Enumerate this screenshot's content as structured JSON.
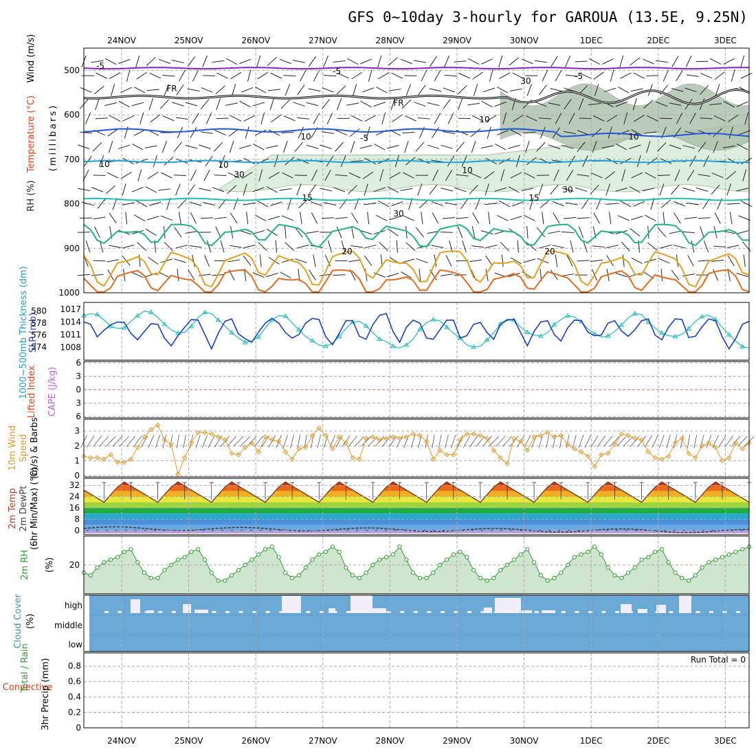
{
  "title": "GFS 0~10day 3-hourly for GAROUA (13.5E, 9.25N)",
  "run_total_label": "Run Total = 0",
  "colors": {
    "cyan_slp": "#22bbbb",
    "thickness": "#1a3fbf",
    "wind_orange": "#e69a2e",
    "rh_green": "#2e9e2e",
    "cloud_blue": "#6aa9d6",
    "purple": "#8a1fbf",
    "rh_fill": "#cfe5cf"
  },
  "chart_data": {
    "type": "meteogram",
    "date_labels": [
      "24NOV",
      "25NOV",
      "26NOV",
      "27NOV",
      "28NOV",
      "29NOV",
      "30NOV",
      "1DEC",
      "2DEC",
      "3DEC"
    ],
    "upper_air": {
      "y_label_parts": [
        "RH (%)",
        "Temperature (°C)",
        "Wind (m/s)"
      ],
      "y_label_sub": "(millibars)",
      "pressure_ticks": [
        500,
        600,
        700,
        800,
        900,
        1000
      ],
      "isotherm_labels": [
        {
          "label": "-5",
          "level": 490
        },
        {
          "label": "-5",
          "level": 502
        },
        {
          "label": "-5",
          "level": 512
        },
        {
          "label": "FR",
          "level": 545
        },
        {
          "label": "FR",
          "level": 582
        },
        {
          "label": "-5",
          "level": 650
        },
        {
          "label": "10",
          "level": 713
        },
        {
          "label": "10",
          "level": 727
        },
        {
          "label": "15",
          "level": 790
        },
        {
          "label": "15",
          "level": 792
        },
        {
          "label": "20",
          "level": 910
        },
        {
          "label": "20",
          "level": 910
        }
      ],
      "rh_labels": [
        "30",
        "10",
        "10",
        "10",
        "30",
        "10",
        "30",
        "30"
      ],
      "isotherms": [
        {
          "name": "-5",
          "color": "#8a1fbf",
          "base": 495,
          "amp": 6
        },
        {
          "name": "FR",
          "color": "#000000",
          "base": 560,
          "amp": 12
        },
        {
          "name": "-5b",
          "color": "#2255dd",
          "base": 635,
          "amp": 14
        },
        {
          "name": "10",
          "color": "#1fa0e0",
          "base": 705,
          "amp": 8
        },
        {
          "name": "15",
          "color": "#1fbfb0",
          "base": 790,
          "amp": 9
        },
        {
          "name": "20",
          "color": "#22b088",
          "base": 855,
          "amp": 35
        },
        {
          "name": "25",
          "color": "#e0a020",
          "base": 920,
          "amp": 55
        },
        {
          "name": "30",
          "color": "#e06a20",
          "base": 960,
          "amp": 45
        }
      ]
    },
    "slp_thickness": {
      "left_label": "1000~500mb Thickness (dm)",
      "right_label": "SLP (mb)",
      "thickness_ticks": [
        574,
        576,
        578,
        580
      ],
      "slp_ticks": [
        1008,
        1011,
        1014,
        1017
      ],
      "slp": [
        1015.5,
        1016,
        1015.8,
        1014.5,
        1013,
        1012.5,
        1012.6,
        1014.2,
        1015.5,
        1016.6,
        1016.3,
        1015.1,
        1013.5,
        1012.2,
        1011.4,
        1011.6,
        1013,
        1015.1,
        1016.3,
        1016,
        1014.5,
        1013.1,
        1011.5,
        1010.3,
        1009.2,
        1009.5,
        1010.5,
        1012.6,
        1014.5,
        1015.5,
        1015.4,
        1013.8,
        1012.2,
        1010.6,
        1009.6,
        1008.6,
        1008.3,
        1009,
        1010.6,
        1012.5,
        1014,
        1014.2,
        1013.1,
        1011.5,
        1010,
        1009.4,
        1008.3,
        1007.9,
        1008.6,
        1010,
        1012.3,
        1013.9,
        1014.6,
        1014.3,
        1012.8,
        1011.4,
        1010.2,
        1008.6,
        1008.1,
        1008.3,
        1009.8,
        1011.5,
        1013.6,
        1014.7,
        1014.5,
        1012.8,
        1011.6,
        1010.9,
        1010.7,
        1011.5,
        1013.4,
        1014.6,
        1015.5,
        1015.2,
        1014.1,
        1012.4,
        1011.2,
        1010.5,
        1010.7,
        1011.8,
        1013.3,
        1015,
        1016,
        1015.8,
        1014,
        1012.6,
        1011.4,
        1010.8,
        1010.6,
        1011.1,
        1012.4,
        1014.2,
        1015.3,
        1015.6,
        1014.6,
        1012.8,
        1011,
        1009.5,
        1008.2,
        1007.9
      ],
      "thickness": [
        578.2,
        577.8,
        575.7,
        576.8,
        577.7,
        578.2,
        578.1,
        576.3,
        575.2,
        576.6,
        577.9,
        577.8,
        575.5,
        574.2,
        575.9,
        577.3,
        578.6,
        578.5,
        576.1,
        573.7,
        576.3,
        578.3,
        578.7,
        576.2,
        575.4,
        574.8,
        576.5,
        578,
        578.8,
        578,
        576.4,
        575.5,
        576.1,
        578,
        578.8,
        578.6,
        575.7,
        574.4,
        576.3,
        578.4,
        578.4,
        575.8,
        575.3,
        577.7,
        579.3,
        579.6,
        576.6,
        574.8,
        577.3,
        578.5,
        578,
        575.5,
        575.3,
        576.9,
        578.5,
        578.5,
        575.5,
        575.9,
        577.8,
        578.1,
        576.4,
        575.3,
        577.8,
        578.5,
        578.6,
        576.4,
        574.2,
        576.6,
        578.2,
        578.4,
        576.1,
        575,
        577.2,
        578.5,
        578.4,
        576.5,
        575.9,
        576,
        578,
        578.4,
        576.7,
        575.8,
        576.9,
        578.4,
        578.7,
        576,
        575.2,
        577.3,
        578.7,
        578.6,
        575.6,
        575.8,
        577.4,
        578.7,
        578.4,
        575.7,
        573.7,
        575.4,
        577.8,
        578.3
      ]
    },
    "stability": {
      "labels": [
        "CAPE (J/kg)",
        "Lifted Index"
      ],
      "ticks": [
        -6,
        -3,
        0,
        3,
        6
      ],
      "tick_labels": [
        "6",
        "3",
        "0",
        "3",
        "6"
      ]
    },
    "wind10m": {
      "labels": [
        "10m Wind",
        "Speed",
        "(m/s) & Barbs"
      ],
      "ticks": [
        0,
        1,
        2,
        3
      ],
      "speed": [
        1.3,
        1.2,
        1.2,
        1.1,
        1.4,
        0.9,
        0.9,
        1.1,
        1.9,
        2.6,
        3.1,
        3.4,
        2.4,
        2.1,
        0.1,
        1.2,
        2.2,
        2.9,
        2.9,
        2.8,
        2.6,
        2.4,
        1.5,
        1.4,
        1.9,
        2.2,
        1.6,
        2.6,
        2.4,
        2.3,
        1.6,
        1.1,
        1.8,
        1.9,
        2.7,
        3.2,
        2.7,
        1.8,
        2.6,
        2.2,
        1.2,
        1.1,
        2.5,
        2.6,
        2.4,
        2.5,
        2.6,
        2.5,
        2.6,
        2.8,
        2.7,
        2.3,
        1.1,
        1.7,
        1.4,
        1.4,
        2.4,
        2.8,
        2.8,
        2.7,
        2.5,
        1.7,
        1.2,
        0.8,
        2.5,
        2.3,
        1.7,
        2.6,
        2.7,
        2.9,
        2.6,
        2.7,
        2.1,
        1.8,
        1.6,
        1.3,
        0.6,
        1.4,
        1.5,
        2.1,
        2.8,
        2.7,
        2.5,
        2.4,
        1.6,
        1.2,
        1.1,
        1.3,
        2.2,
        2.5,
        1.5,
        1.2,
        2.0,
        2.2,
        1.9,
        1.0,
        1.2,
        2.2,
        1.8,
        2.2
      ]
    },
    "temperature": {
      "labels": [
        "2m Temp",
        "2m DewPt",
        "(6hr Min/Max) (°C)"
      ],
      "ticks": [
        0,
        8,
        16,
        24,
        32
      ],
      "dewpoint_note": "dashed dewpoint near 0"
    },
    "rh2m": {
      "labels": [
        "2m RH",
        "(%)"
      ],
      "ticks": [
        20
      ],
      "values": [
        17,
        16,
        19,
        21,
        22,
        23,
        25,
        26,
        21,
        17,
        15,
        15,
        18,
        20,
        22,
        23,
        25,
        26,
        22,
        17,
        14,
        14,
        16,
        18,
        20,
        22,
        24,
        26,
        27,
        23,
        17,
        15,
        16,
        19,
        22,
        24,
        25,
        27,
        25,
        19,
        16,
        15,
        17,
        20,
        22,
        23,
        24,
        27,
        22,
        17,
        15,
        15,
        17,
        20,
        22,
        24,
        25,
        23,
        18,
        15,
        14,
        15,
        18,
        20,
        22,
        24,
        26,
        21,
        16,
        14,
        15,
        17,
        20,
        23,
        24,
        25,
        27,
        24,
        19,
        16,
        15,
        17,
        19,
        22,
        23,
        25,
        26,
        21,
        17,
        15,
        14,
        16,
        19,
        21,
        22,
        23,
        24,
        25,
        26,
        27
      ]
    },
    "cloud": {
      "labels": [
        "Cloud Cover",
        "(%)"
      ],
      "levels": [
        "high",
        "middle",
        "low"
      ]
    },
    "precip": {
      "labels": [
        "Total / Rain",
        "Convective",
        "3hr Precip (mm)"
      ],
      "ticks": [
        0,
        0.2,
        0.4,
        0.6,
        0.8
      ],
      "tick_labels": [
        "0",
        "0.2",
        "0.4",
        "0.6",
        "0.8"
      ],
      "values": [
        0
      ]
    }
  }
}
